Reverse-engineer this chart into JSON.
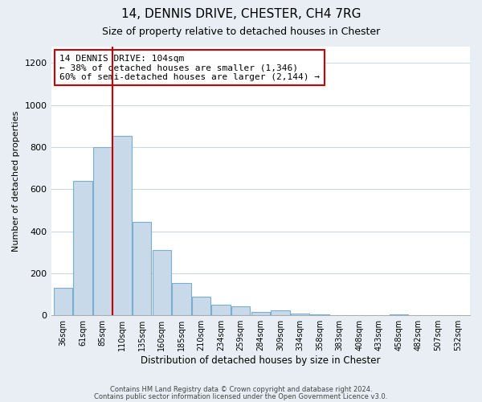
{
  "title": "14, DENNIS DRIVE, CHESTER, CH4 7RG",
  "subtitle": "Size of property relative to detached houses in Chester",
  "xlabel": "Distribution of detached houses by size in Chester",
  "ylabel": "Number of detached properties",
  "bar_color": "#c8d9ea",
  "bar_edge_color": "#7aaed0",
  "categories": [
    "36sqm",
    "61sqm",
    "85sqm",
    "110sqm",
    "135sqm",
    "160sqm",
    "185sqm",
    "210sqm",
    "234sqm",
    "259sqm",
    "284sqm",
    "309sqm",
    "334sqm",
    "358sqm",
    "383sqm",
    "408sqm",
    "433sqm",
    "458sqm",
    "482sqm",
    "507sqm",
    "532sqm"
  ],
  "values": [
    130,
    640,
    800,
    855,
    445,
    310,
    155,
    90,
    52,
    43,
    15,
    22,
    10,
    3,
    0,
    0,
    0,
    5,
    0,
    0,
    0
  ],
  "vline_x": 2.5,
  "vline_color": "#cc0000",
  "annotation_line1": "14 DENNIS DRIVE: 104sqm",
  "annotation_line2": "← 38% of detached houses are smaller (1,346)",
  "annotation_line3": "60% of semi-detached houses are larger (2,144) →",
  "annotation_box_edge": "#cc0000",
  "annotation_box_face": "#ffffff",
  "ylim": [
    0,
    1280
  ],
  "yticks": [
    0,
    200,
    400,
    600,
    800,
    1000,
    1200
  ],
  "footer_line1": "Contains HM Land Registry data © Crown copyright and database right 2024.",
  "footer_line2": "Contains public sector information licensed under the Open Government Licence v3.0.",
  "background_color": "#e8eef4",
  "plot_bg_color": "#ffffff",
  "grid_color": "#c5d5e5"
}
